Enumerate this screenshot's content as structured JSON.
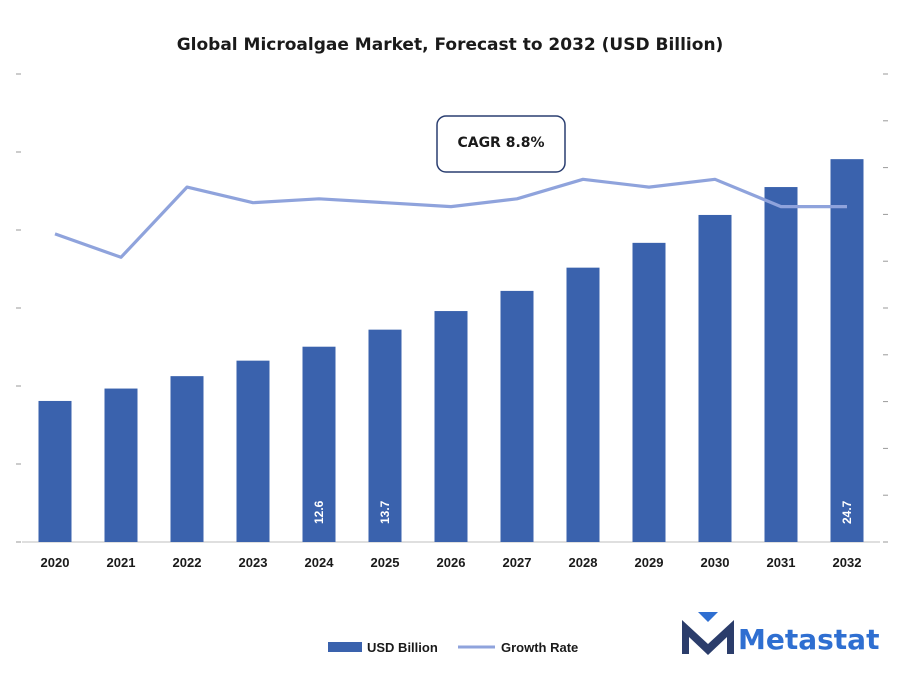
{
  "chart_data": {
    "type": "bar",
    "title": "Global Microalgae Market, Forecast to 2032 (USD Billion)",
    "categories": [
      "2020",
      "2021",
      "2022",
      "2023",
      "2024",
      "2025",
      "2026",
      "2027",
      "2028",
      "2029",
      "2030",
      "2031",
      "2032"
    ],
    "series": [
      {
        "name": "USD Billion",
        "type": "bar",
        "color": "#3a62ad",
        "values": [
          9.1,
          9.9,
          10.7,
          11.7,
          12.6,
          13.7,
          14.9,
          16.2,
          17.7,
          19.3,
          21.1,
          22.9,
          24.7
        ],
        "labels": [
          "",
          "",
          "",
          "",
          "12.6",
          "13.7",
          "",
          "",
          "",
          "",
          "",
          "",
          "24.7"
        ]
      },
      {
        "name": "Growth Rate",
        "type": "line",
        "color": "#8fa3dc",
        "values": [
          7.9,
          7.3,
          9.1,
          8.7,
          8.8,
          8.7,
          8.6,
          8.8,
          9.3,
          9.1,
          9.3,
          8.6,
          8.6
        ]
      }
    ],
    "ylim": [
      0,
      25.5
    ],
    "y2lim": [
      0,
      12
    ],
    "annotation": "CAGR 8.8%",
    "legend_position": "bottom",
    "grid": false
  },
  "legend": {
    "bar_label": "USD Billion",
    "line_label": "Growth Rate"
  },
  "brand": {
    "name": "Metastat",
    "color": "#2f6fd1",
    "icon": "metastat-m-logo-icon"
  }
}
